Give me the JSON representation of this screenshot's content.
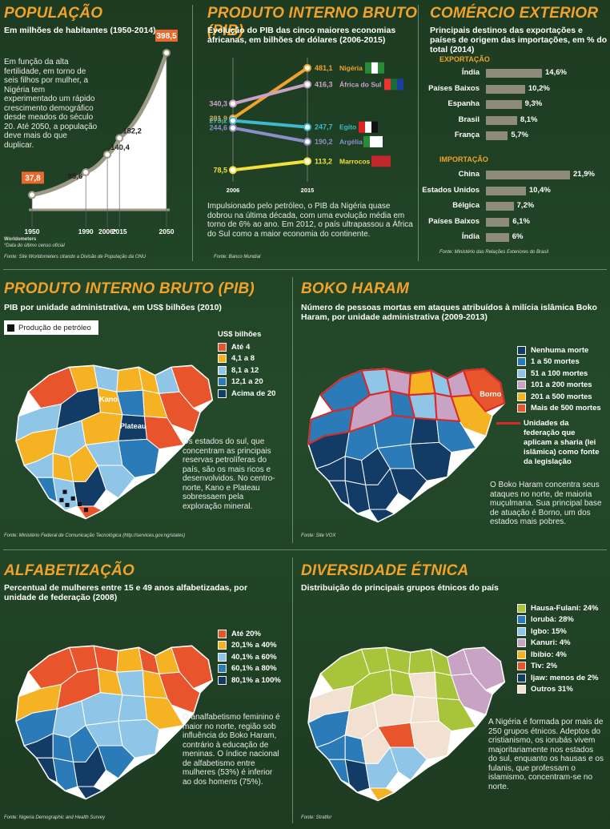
{
  "populacao": {
    "title": "POPULAÇÃO",
    "subtitle": "Em milhões de habitantes (1950-2014)",
    "text": "Em função da alta fertilidade, em torno de seis filhos por mulher, a Nigéria tem experimentado um rápido crescimento demográfico desde meados do século 20. Até 2050, a população deve mais do que duplicar.",
    "note1": "Worldometers",
    "note2": "*Data do último censo oficial",
    "source": "Fonte: Site Worldometers citando a Divisão de População da ONU"
  },
  "pib_linha": {
    "title": "PRODUTO INTERNO BRUTO (PIB)",
    "subtitle": "Evolução do PIB das cinco maiores economias africanas, em bilhões de dólares (2006-2015)",
    "text": "Impulsionado pelo petróleo, o PIB da Nigéria quase dobrou na última década, com uma evolução média em torno de 6% ao ano. Em 2012, o país ultrapassou a África do Sul como a maior economia do continente.",
    "source": "Fonte: Banco Mundial"
  },
  "comercio": {
    "title": "COMÉRCIO EXTERIOR",
    "subtitle": "Principais destinos das exportações e países de origem das importações, em % do total (2014)",
    "export_label": "EXPORTAÇÃO",
    "import_label": "IMPORTAÇÃO",
    "source": "Fonte: Ministério das Relações Exteriores do Brasil"
  },
  "pib_mapa": {
    "title": "PRODUTO INTERNO BRUTO (PIB)",
    "subtitle": "PIB por unidade administrativa, em US$ bilhões (2010)",
    "oil_label": "Produção de petróleo",
    "legend_title": "US$ bilhões",
    "legend": [
      "Até 4",
      "4,1 a 8",
      "8,1 a 12",
      "12,1 a 20",
      "Acima de 20"
    ],
    "colors": [
      "#e8552c",
      "#f5b324",
      "#8fc6e8",
      "#2a7bb8",
      "#123b66"
    ],
    "kano": "Kano",
    "plateau": "Plateau",
    "text": "Os estados do sul, que concentram as principais reservas petrolíferas do país, são os mais ricos e desenvolvidos. No centro-norte, Kano e Plateau sobressaem pela exploração mineral.",
    "source": "Fonte: Ministério Federal de Comunicação Tecnológica (http://services.gov.ng/states)"
  },
  "boko": {
    "title": "BOKO HARAM",
    "subtitle": "Número de pessoas mortas em ataques atribuídos à milícia islâmica Boko Haram, por unidade administrativa (2009-2013)",
    "legend": [
      "Nenhuma morte",
      "1 a 50 mortes",
      "51 a 100 mortes",
      "101 a 200 mortes",
      "201 a 500 mortes",
      "Mais de 500 mortes"
    ],
    "colors": [
      "#123b66",
      "#2a7bb8",
      "#8fc6e8",
      "#c9a3c4",
      "#f5b324",
      "#e8552c"
    ],
    "sharia": "Unidades da federação que aplicam a sharia (lei islâmica) como fonte da legislação",
    "borno": "Borno",
    "text": "O Boko Haram concentra seus ataques no norte, de maioria muçulmana. Sua principal base de atuação é Borno, um dos estados mais pobres.",
    "source": "Fonte: Site VOX"
  },
  "alfa": {
    "title": "ALFABETIZAÇÃO",
    "subtitle": "Percentual de mulheres entre 15 e 49 anos alfabetizadas, por unidade de federação (2008)",
    "legend": [
      "Até 20%",
      "20,1% a 40%",
      "40,1% a 60%",
      "60,1% a 80%",
      "80,1% a 100%"
    ],
    "colors": [
      "#e8552c",
      "#f5b324",
      "#8fc6e8",
      "#2a7bb8",
      "#123b66"
    ],
    "text": "O analfabetismo feminino é maior no norte, região sob influência do Boko Haram, contrário à educação de meninas. O índice nacional de alfabetismo entre mulheres (53%) é inferior ao dos homens (75%).",
    "source": "Fonte: Nigeria Demographic and Health Survey"
  },
  "etnica": {
    "title": "DIVERSIDADE ÉTNICA",
    "subtitle": "Distribuição do principais grupos étnicos do país",
    "legend": [
      "Hausa-Fulani: 24%",
      "Iorubá: 28%",
      "Igbo: 15%",
      "Kanuri: 4%",
      "Ibibio: 4%",
      "Tiv: 2%",
      "Ijaw: menos de 2%",
      "Outros 31%"
    ],
    "colors": [
      "#a7c43a",
      "#2a7bb8",
      "#8fc6e8",
      "#c9a3c4",
      "#f5b324",
      "#e8552c",
      "#123b66",
      "#f2e0d0"
    ],
    "text": "A Nigéria é formada por mais de 250 grupos étnicos. Adeptos do cristianismo, os iorubás vivem majoritariamente nos estados do sul, enquanto os hausas e os fulanis, que professam o islamismo, concentram-se no norte.",
    "source": "Fonte: Stratfor"
  },
  "chart_data": [
    {
      "type": "area",
      "title": "POPULAÇÃO",
      "x": [
        "1950",
        "1990",
        "2006*",
        "2015",
        "2050"
      ],
      "values": [
        37.8,
        95.6,
        140.4,
        182.2,
        398.5
      ],
      "ylabel": "Em milhões de habitantes"
    },
    {
      "type": "line",
      "title": "PRODUTO INTERNO BRUTO (PIB)",
      "x": [
        "2006",
        "2015"
      ],
      "series": [
        {
          "name": "Nigéria",
          "values": [
            281.9,
            481.1
          ],
          "color": "#f0a22a"
        },
        {
          "name": "África do Sul",
          "values": [
            340.3,
            416.3
          ],
          "color": "#c9a3c4"
        },
        {
          "name": "Egito",
          "values": [
            273.2,
            247.7
          ],
          "color": "#3fb8c9"
        },
        {
          "name": "Argélia",
          "values": [
            244.6,
            190.2
          ],
          "color": "#8d8dc8"
        },
        {
          "name": "Marrocos",
          "values": [
            78.5,
            113.2
          ],
          "color": "#f3e03a"
        }
      ]
    },
    {
      "type": "bar",
      "title": "EXPORTAÇÃO",
      "categories": [
        "Índia",
        "Países Baixos",
        "Espanha",
        "Brasil",
        "França"
      ],
      "values": [
        14.6,
        10.2,
        9.3,
        8.1,
        5.7
      ]
    },
    {
      "type": "bar",
      "title": "IMPORTAÇÃO",
      "categories": [
        "China",
        "Estados Unidos",
        "Bélgica",
        "Países Baixos",
        "Índia"
      ],
      "values": [
        21.9,
        10.4,
        7.2,
        6.1,
        6.0
      ]
    }
  ]
}
